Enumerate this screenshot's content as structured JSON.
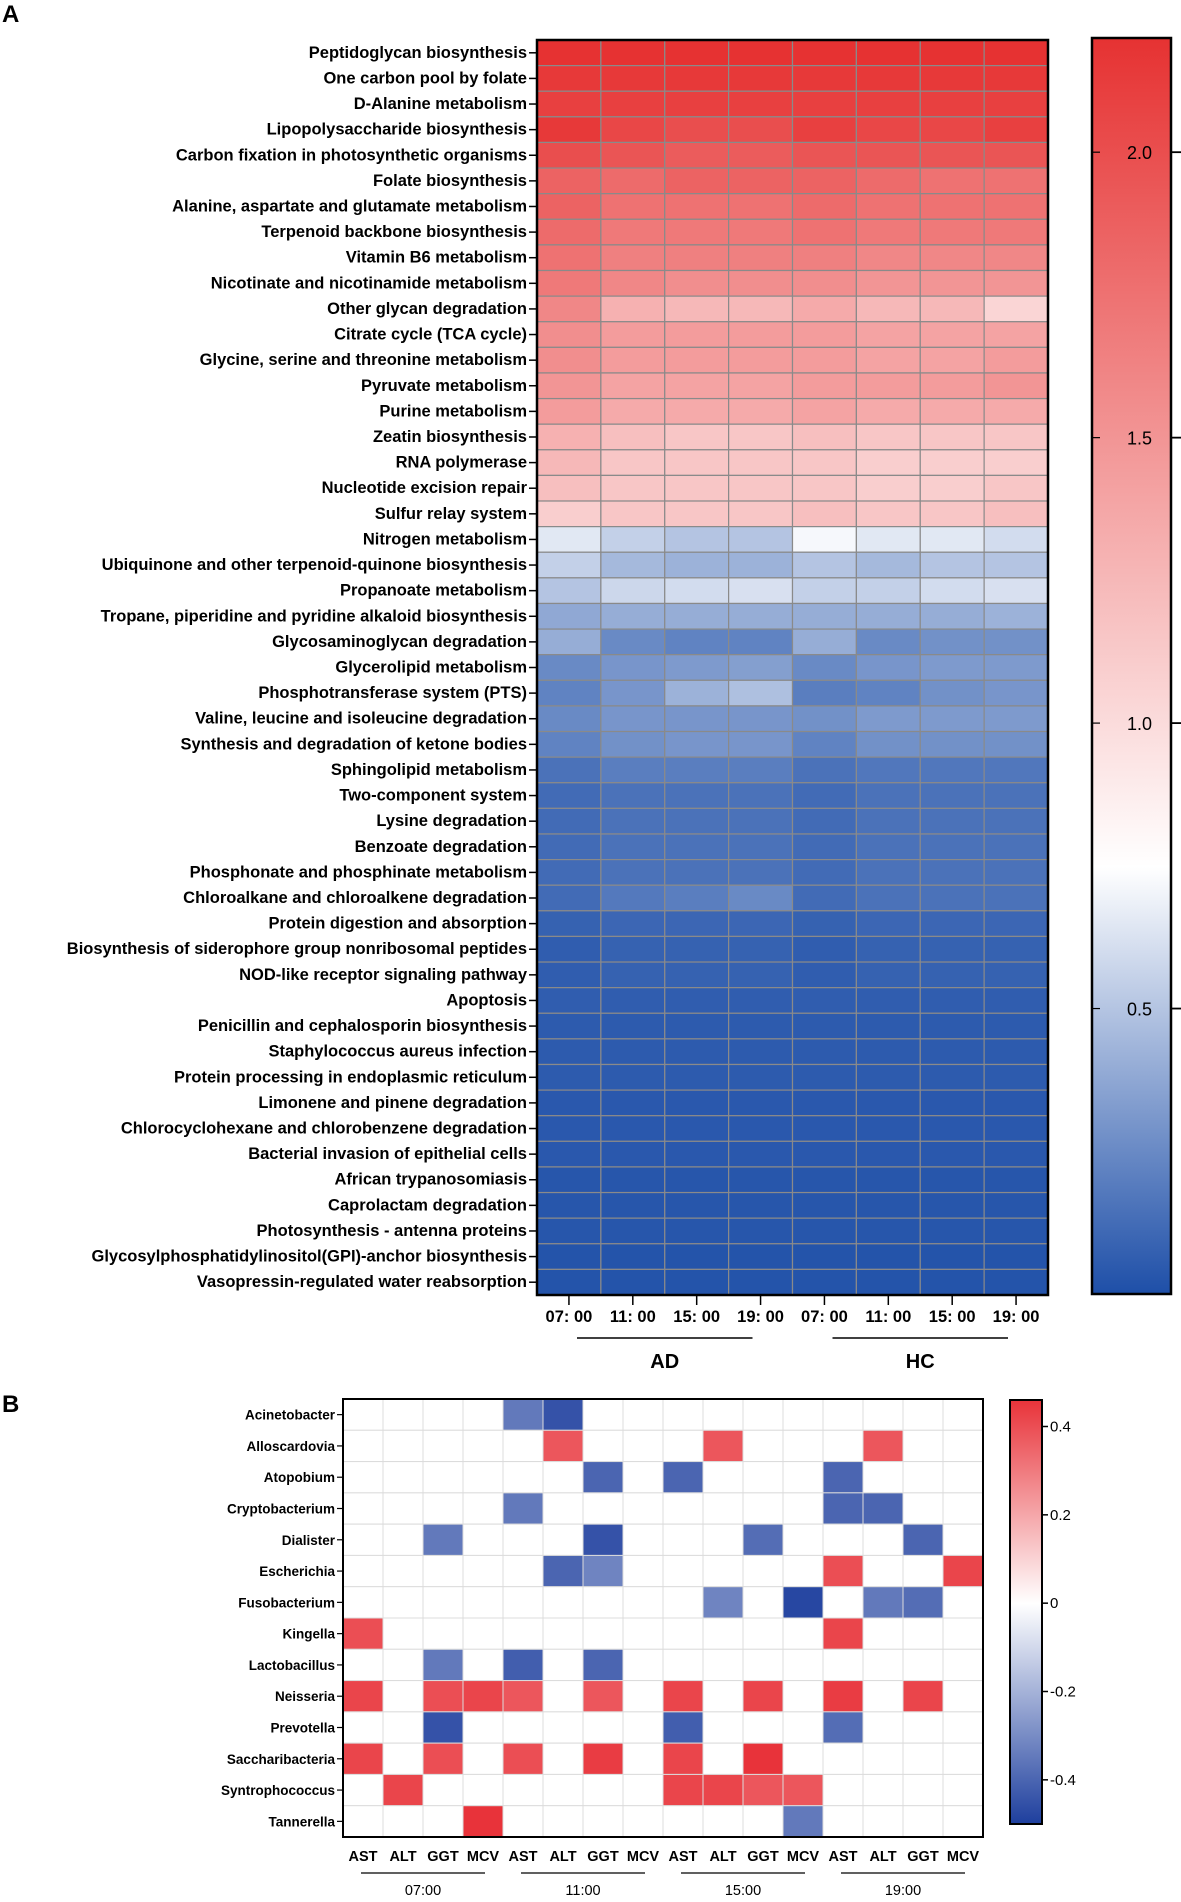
{
  "chart_data": [
    {
      "panel": "A",
      "type": "heatmap",
      "columns": [
        "07: 00",
        "11: 00",
        "15: 00",
        "19: 00",
        "07: 00",
        "11: 00",
        "15: 00",
        "19: 00"
      ],
      "groups": [
        {
          "name": "AD",
          "span": [
            0,
            3
          ]
        },
        {
          "name": "HC",
          "span": [
            4,
            7
          ]
        }
      ],
      "colorbar": {
        "min": 0.0,
        "max": 2.2,
        "ticks": [
          "2.0",
          "1.5",
          "1.0",
          "0.5"
        ],
        "tick_values": [
          2.0,
          1.5,
          1.0,
          0.5
        ],
        "colors": [
          "#1e4fa8",
          "#ffffff",
          "#e63232"
        ],
        "mid": 0.75
      },
      "rows": [
        "Peptidoglycan biosynthesis",
        "One carbon pool by folate",
        "D-Alanine metabolism",
        "Lipopolysaccharide biosynthesis",
        "Carbon fixation in photosynthetic organisms",
        "Folate biosynthesis",
        "Alanine, aspartate and glutamate metabolism",
        "Terpenoid backbone biosynthesis",
        "Vitamin B6 metabolism",
        "Nicotinate and nicotinamide metabolism",
        "Other glycan degradation",
        "Citrate cycle (TCA cycle)",
        "Glycine, serine and threonine metabolism",
        "Pyruvate metabolism",
        "Purine metabolism",
        "Zeatin biosynthesis",
        "RNA polymerase",
        "Nucleotide excision repair",
        "Sulfur relay system",
        "Nitrogen metabolism",
        "Ubiquinone and other terpenoid-quinone biosynthesis",
        "Propanoate metabolism",
        "Tropane, piperidine and pyridine alkaloid biosynthesis",
        "Glycosaminoglycan degradation",
        "Glycerolipid metabolism",
        "Phosphotransferase system (PTS)",
        "Valine, leucine and isoleucine degradation",
        "Synthesis and degradation of ketone bodies",
        "Sphingolipid metabolism",
        "Two-component system",
        "Lysine degradation",
        "Benzoate degradation",
        "Phosphonate and phosphinate metabolism",
        "Chloroalkane and chloroalkene degradation",
        "Protein digestion and absorption",
        "Biosynthesis of siderophore group nonribosomal peptides",
        "NOD-like receptor signaling pathway",
        "Apoptosis",
        "Penicillin and cephalosporin biosynthesis",
        "Staphylococcus aureus infection",
        "Protein processing in endoplasmic reticulum",
        "Limonene and pinene degradation",
        "Chlorocyclohexane and chlorobenzene degradation",
        "Bacterial invasion of epithelial cells",
        "African trypanosomiasis",
        "Caprolactam degradation",
        "Photosynthesis - antenna proteins",
        "Glycosylphosphatidylinositol(GPI)-anchor biosynthesis",
        "Vasopressin-regulated water reabsorption"
      ],
      "values": [
        [
          2.2,
          2.2,
          2.2,
          2.2,
          2.2,
          2.2,
          2.2,
          2.2
        ],
        [
          2.15,
          2.15,
          2.15,
          2.15,
          2.15,
          2.15,
          2.15,
          2.15
        ],
        [
          2.1,
          2.1,
          2.1,
          2.1,
          2.1,
          2.1,
          2.1,
          2.1
        ],
        [
          2.15,
          2.05,
          2.0,
          2.0,
          2.1,
          2.05,
          2.05,
          2.1
        ],
        [
          2.0,
          1.95,
          1.9,
          1.9,
          1.95,
          1.95,
          1.95,
          1.95
        ],
        [
          1.85,
          1.8,
          1.85,
          1.85,
          1.85,
          1.8,
          1.75,
          1.75
        ],
        [
          1.85,
          1.75,
          1.75,
          1.75,
          1.8,
          1.75,
          1.75,
          1.75
        ],
        [
          1.8,
          1.7,
          1.7,
          1.7,
          1.75,
          1.7,
          1.7,
          1.7
        ],
        [
          1.75,
          1.65,
          1.65,
          1.65,
          1.65,
          1.6,
          1.6,
          1.6
        ],
        [
          1.7,
          1.6,
          1.55,
          1.55,
          1.55,
          1.5,
          1.5,
          1.5
        ],
        [
          1.6,
          1.3,
          1.25,
          1.25,
          1.35,
          1.25,
          1.25,
          1.05
        ],
        [
          1.55,
          1.45,
          1.45,
          1.45,
          1.45,
          1.4,
          1.4,
          1.4
        ],
        [
          1.55,
          1.45,
          1.45,
          1.45,
          1.45,
          1.4,
          1.4,
          1.45
        ],
        [
          1.5,
          1.4,
          1.4,
          1.4,
          1.45,
          1.45,
          1.45,
          1.5
        ],
        [
          1.45,
          1.35,
          1.35,
          1.35,
          1.4,
          1.35,
          1.35,
          1.35
        ],
        [
          1.3,
          1.2,
          1.15,
          1.15,
          1.2,
          1.15,
          1.15,
          1.15
        ],
        [
          1.25,
          1.15,
          1.15,
          1.15,
          1.15,
          1.1,
          1.1,
          1.1
        ],
        [
          1.2,
          1.15,
          1.15,
          1.15,
          1.15,
          1.1,
          1.1,
          1.15
        ],
        [
          1.1,
          1.15,
          1.15,
          1.15,
          1.2,
          1.15,
          1.15,
          1.2
        ],
        [
          0.65,
          0.55,
          0.5,
          0.5,
          0.72,
          0.65,
          0.65,
          0.6
        ],
        [
          0.55,
          0.45,
          0.42,
          0.42,
          0.5,
          0.45,
          0.5,
          0.5
        ],
        [
          0.5,
          0.58,
          0.6,
          0.62,
          0.55,
          0.55,
          0.6,
          0.62
        ],
        [
          0.38,
          0.4,
          0.4,
          0.4,
          0.4,
          0.4,
          0.4,
          0.42
        ],
        [
          0.4,
          0.25,
          0.22,
          0.22,
          0.4,
          0.25,
          0.28,
          0.28
        ],
        [
          0.25,
          0.3,
          0.32,
          0.34,
          0.25,
          0.3,
          0.32,
          0.32
        ],
        [
          0.22,
          0.3,
          0.42,
          0.48,
          0.2,
          0.22,
          0.28,
          0.3
        ],
        [
          0.25,
          0.3,
          0.3,
          0.3,
          0.28,
          0.32,
          0.32,
          0.32
        ],
        [
          0.22,
          0.28,
          0.3,
          0.3,
          0.22,
          0.28,
          0.28,
          0.28
        ],
        [
          0.15,
          0.2,
          0.2,
          0.2,
          0.15,
          0.17,
          0.17,
          0.17
        ],
        [
          0.12,
          0.15,
          0.15,
          0.15,
          0.12,
          0.15,
          0.15,
          0.15
        ],
        [
          0.12,
          0.15,
          0.15,
          0.15,
          0.12,
          0.15,
          0.15,
          0.15
        ],
        [
          0.12,
          0.15,
          0.15,
          0.15,
          0.12,
          0.15,
          0.15,
          0.15
        ],
        [
          0.12,
          0.15,
          0.15,
          0.15,
          0.12,
          0.15,
          0.15,
          0.15
        ],
        [
          0.12,
          0.18,
          0.2,
          0.25,
          0.12,
          0.15,
          0.15,
          0.15
        ],
        [
          0.08,
          0.1,
          0.1,
          0.1,
          0.08,
          0.1,
          0.1,
          0.1
        ],
        [
          0.06,
          0.08,
          0.08,
          0.08,
          0.06,
          0.08,
          0.08,
          0.08
        ],
        [
          0.06,
          0.08,
          0.08,
          0.08,
          0.06,
          0.08,
          0.08,
          0.08
        ],
        [
          0.06,
          0.06,
          0.06,
          0.06,
          0.06,
          0.06,
          0.06,
          0.06
        ],
        [
          0.05,
          0.05,
          0.05,
          0.05,
          0.05,
          0.05,
          0.05,
          0.05
        ],
        [
          0.05,
          0.05,
          0.05,
          0.05,
          0.05,
          0.05,
          0.05,
          0.05
        ],
        [
          0.05,
          0.05,
          0.05,
          0.05,
          0.05,
          0.05,
          0.05,
          0.05
        ],
        [
          0.04,
          0.04,
          0.04,
          0.04,
          0.04,
          0.04,
          0.04,
          0.04
        ],
        [
          0.04,
          0.04,
          0.04,
          0.04,
          0.04,
          0.04,
          0.04,
          0.04
        ],
        [
          0.04,
          0.04,
          0.04,
          0.04,
          0.04,
          0.04,
          0.04,
          0.04
        ],
        [
          0.03,
          0.03,
          0.03,
          0.03,
          0.03,
          0.03,
          0.03,
          0.03
        ],
        [
          0.03,
          0.03,
          0.03,
          0.03,
          0.03,
          0.03,
          0.03,
          0.03
        ],
        [
          0.03,
          0.03,
          0.03,
          0.03,
          0.03,
          0.03,
          0.03,
          0.03
        ],
        [
          0.02,
          0.02,
          0.02,
          0.02,
          0.02,
          0.02,
          0.02,
          0.02
        ],
        [
          0.02,
          0.02,
          0.02,
          0.02,
          0.02,
          0.02,
          0.02,
          0.02
        ]
      ]
    },
    {
      "panel": "B",
      "type": "heatmap",
      "columns": [
        "AST",
        "ALT",
        "GGT",
        "MCV",
        "AST",
        "ALT",
        "GGT",
        "MCV",
        "AST",
        "ALT",
        "GGT",
        "MCV",
        "AST",
        "ALT",
        "GGT",
        "MCV"
      ],
      "groups": [
        {
          "name": "07:00",
          "span": [
            0,
            3
          ]
        },
        {
          "name": "11:00",
          "span": [
            4,
            7
          ]
        },
        {
          "name": "15:00",
          "span": [
            8,
            11
          ]
        },
        {
          "name": "19:00",
          "span": [
            12,
            15
          ]
        }
      ],
      "colorbar": {
        "min": -0.5,
        "max": 0.46,
        "ticks": [
          "0.4",
          "0.2",
          "0",
          "-0.2",
          "-0.4"
        ],
        "tick_values": [
          0.4,
          0.2,
          0,
          -0.2,
          -0.4
        ],
        "colors": [
          "#1e3f9e",
          "#ffffff",
          "#e8333a"
        ]
      },
      "rows": [
        "Acinetobacter",
        "Alloscardovia",
        "Atopobium",
        "Cryptobacterium",
        "Dialister",
        "Escherichia",
        "Fusobacterium",
        "Kingella",
        "Lactobacillus",
        "Neisseria",
        "Prevotella",
        "Saccharibacteria",
        "Syntrophococcus",
        "Tannerella"
      ],
      "values": [
        [
          0,
          0,
          0,
          0,
          -0.35,
          -0.45,
          0,
          0,
          0,
          0,
          0,
          0,
          0,
          0,
          0,
          0
        ],
        [
          0,
          0,
          0,
          0,
          0,
          0.38,
          0,
          0,
          0,
          0.38,
          0,
          0,
          0,
          0.38,
          0,
          0
        ],
        [
          0,
          0,
          0,
          0,
          0,
          0,
          -0.4,
          0,
          -0.4,
          0,
          0,
          0,
          -0.4,
          0,
          0,
          0
        ],
        [
          0,
          0,
          0,
          0,
          -0.35,
          0,
          0,
          0,
          0,
          0,
          0,
          0,
          -0.4,
          -0.4,
          0,
          0
        ],
        [
          0,
          0,
          -0.35,
          0,
          0,
          0,
          -0.45,
          0,
          0,
          0,
          -0.38,
          0,
          0,
          0,
          -0.4,
          0
        ],
        [
          0,
          0,
          0,
          0,
          0,
          -0.4,
          -0.32,
          0,
          0,
          0,
          0,
          0,
          0.4,
          0,
          0,
          0.42
        ],
        [
          0,
          0,
          0,
          0,
          0,
          0,
          0,
          0,
          0,
          -0.32,
          0,
          -0.48,
          0,
          -0.35,
          -0.38,
          0
        ],
        [
          0.4,
          0,
          0,
          0,
          0,
          0,
          0,
          0,
          0,
          0,
          0,
          0,
          0.42,
          0,
          0,
          0
        ],
        [
          0,
          0,
          -0.35,
          0,
          -0.42,
          0,
          -0.4,
          0,
          0,
          0,
          0,
          0,
          0,
          0,
          0,
          0
        ],
        [
          0.42,
          0,
          0.4,
          0.42,
          0.38,
          0,
          0.38,
          0,
          0.42,
          0,
          0.42,
          0,
          0.44,
          0,
          0.42,
          0
        ],
        [
          0,
          0,
          -0.45,
          0,
          0,
          0,
          0,
          0,
          -0.42,
          0,
          0,
          0,
          -0.38,
          0,
          0,
          0
        ],
        [
          0.42,
          0,
          0.4,
          0,
          0.4,
          0,
          0.44,
          0,
          0.42,
          0,
          0.46,
          0,
          0,
          0,
          0,
          0
        ],
        [
          0,
          0.42,
          0,
          0,
          0,
          0,
          0,
          0,
          0.42,
          0.42,
          0.38,
          0.38,
          0,
          0,
          0,
          0
        ],
        [
          0,
          0,
          0,
          0.5,
          0,
          0,
          0,
          0,
          0,
          0,
          0,
          -0.35,
          0,
          0,
          0,
          0
        ]
      ]
    }
  ],
  "panel_labels": {
    "a": "A",
    "b": "B"
  },
  "colorbar_a_ticks": [
    "2.0",
    "1.5",
    "1.0",
    "0.5"
  ],
  "colorbar_b_ticks": [
    "0.4",
    "0.2",
    "0",
    "-0.2",
    "-0.4"
  ]
}
